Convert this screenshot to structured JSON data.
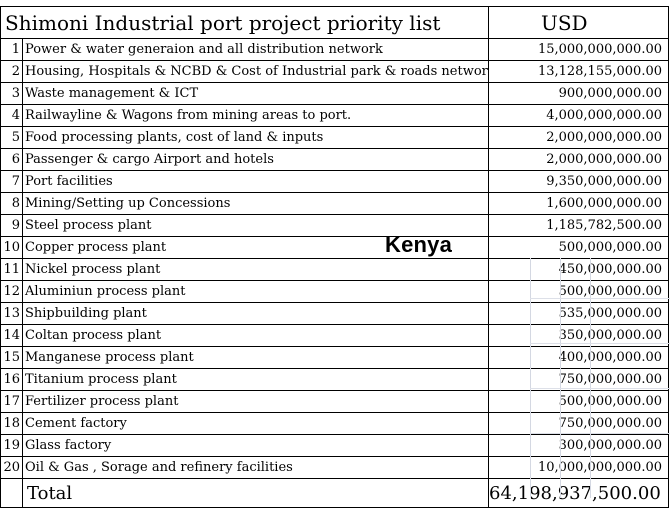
{
  "title": "Shimoni Industrial port project priority list",
  "currency_header": "USD",
  "overlay_label": "Kenya",
  "rows": [
    {
      "num": "1",
      "desc": "Power & water generaion and all distribution network",
      "amount": "15,000,000,000.00"
    },
    {
      "num": "2",
      "desc": "Housing, Hospitals & NCBD & Cost of Industrial park & roads network",
      "amount": "13,128,155,000.00"
    },
    {
      "num": "3",
      "desc": "Waste management & ICT",
      "amount": "900,000,000.00"
    },
    {
      "num": "4",
      "desc": "Railwayline & Wagons from mining areas to port.",
      "amount": "4,000,000,000.00"
    },
    {
      "num": "5",
      "desc": "Food processing plants, cost of land & inputs",
      "amount": "2,000,000,000.00"
    },
    {
      "num": "6",
      "desc": "Passenger  & cargo Airport and hotels",
      "amount": "2,000,000,000.00"
    },
    {
      "num": "7",
      "desc": "Port facilities",
      "amount": "9,350,000,000.00"
    },
    {
      "num": "8",
      "desc": "Mining/Setting up Concessions",
      "amount": "1,600,000,000.00"
    },
    {
      "num": "9",
      "desc": "Steel process plant",
      "amount": "1,185,782,500.00"
    },
    {
      "num": "10",
      "desc": "Copper process plant",
      "amount": "500,000,000.00"
    },
    {
      "num": "11",
      "desc": "Nickel process plant",
      "amount": "450,000,000.00"
    },
    {
      "num": "12",
      "desc": "Aluminiun process plant",
      "amount": "500,000,000.00"
    },
    {
      "num": "13",
      "desc": "Shipbuilding plant",
      "amount": "535,000,000.00"
    },
    {
      "num": "14",
      "desc": "Coltan  process plant",
      "amount": "350,000,000.00"
    },
    {
      "num": "15",
      "desc": "Manganese process plant",
      "amount": "400,000,000.00"
    },
    {
      "num": "16",
      "desc": "Titanium process plant",
      "amount": "750,000,000.00"
    },
    {
      "num": "17",
      "desc": "Fertilizer process plant",
      "amount": "500,000,000.00"
    },
    {
      "num": "18",
      "desc": "Cement factory",
      "amount": "750,000,000.00"
    },
    {
      "num": "19",
      "desc": "Glass factory",
      "amount": "300,000,000.00"
    },
    {
      "num": "20",
      "desc": "Oil & Gas , Sorage and refinery facilities",
      "amount": "10,000,000,000.00"
    }
  ],
  "total": {
    "label": "Total",
    "amount": "64,198,937,500.00"
  }
}
